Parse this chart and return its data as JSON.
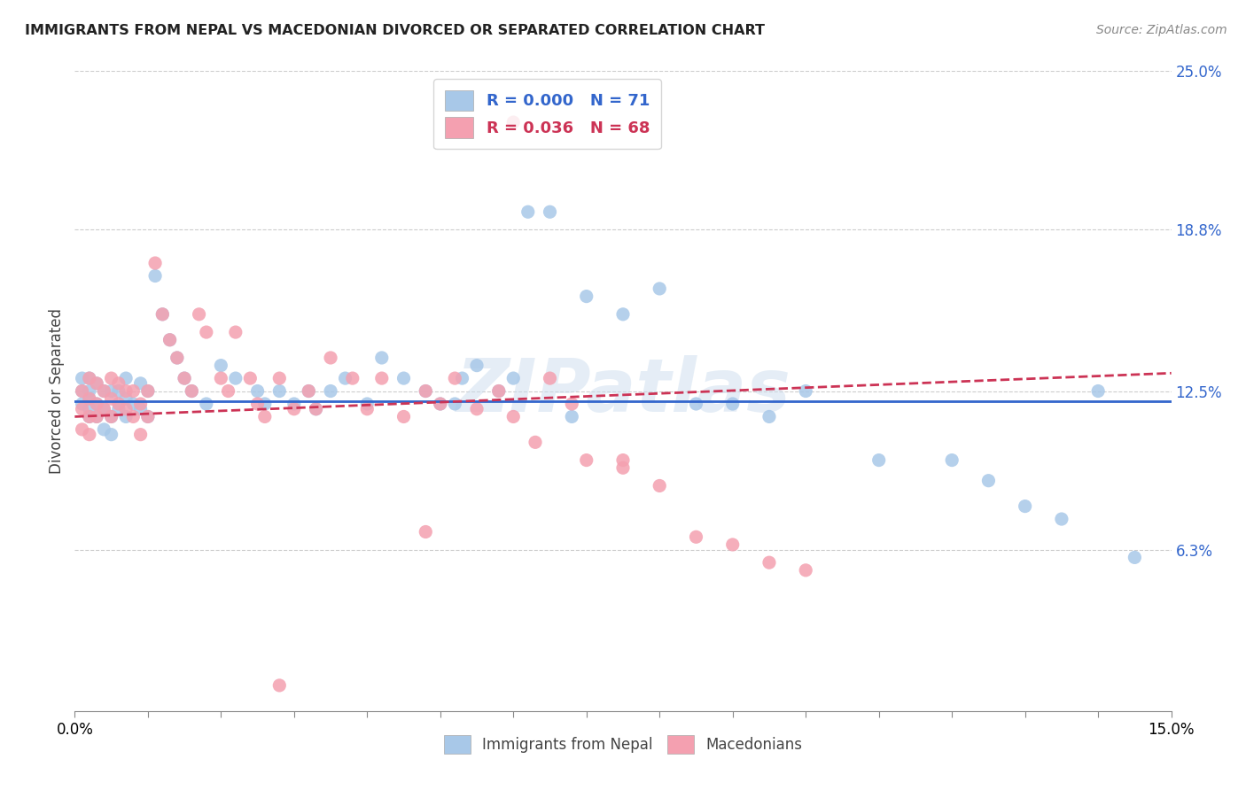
{
  "title": "IMMIGRANTS FROM NEPAL VS MACEDONIAN DIVORCED OR SEPARATED CORRELATION CHART",
  "source_text": "Source: ZipAtlas.com",
  "ylabel": "Divorced or Separated",
  "xlim": [
    0.0,
    0.15
  ],
  "ylim": [
    0.0,
    0.25
  ],
  "ytick_values": [
    0.0,
    0.063,
    0.125,
    0.188,
    0.25
  ],
  "ytick_labels": [
    "",
    "6.3%",
    "12.5%",
    "18.8%",
    "25.0%"
  ],
  "watermark_text": "ZIPatlas",
  "nepal_color": "#a8c8e8",
  "macedonian_color": "#f4a0b0",
  "nepal_trend_color": "#3366cc",
  "macedonian_trend_color": "#cc3355",
  "grid_color": "#cccccc",
  "nepal_R": 0.0,
  "nepal_N": 71,
  "macedonian_R": 0.036,
  "macedonian_N": 68,
  "nepal_x": [
    0.001,
    0.001,
    0.001,
    0.002,
    0.002,
    0.002,
    0.002,
    0.002,
    0.003,
    0.003,
    0.003,
    0.004,
    0.004,
    0.004,
    0.005,
    0.005,
    0.005,
    0.006,
    0.006,
    0.007,
    0.007,
    0.007,
    0.008,
    0.009,
    0.009,
    0.01,
    0.01,
    0.011,
    0.012,
    0.013,
    0.014,
    0.015,
    0.016,
    0.018,
    0.02,
    0.022,
    0.025,
    0.026,
    0.028,
    0.03,
    0.032,
    0.033,
    0.035,
    0.037,
    0.04,
    0.042,
    0.045,
    0.048,
    0.05,
    0.052,
    0.053,
    0.055,
    0.058,
    0.06,
    0.062,
    0.065,
    0.068,
    0.07,
    0.075,
    0.08,
    0.085,
    0.09,
    0.095,
    0.1,
    0.11,
    0.12,
    0.125,
    0.13,
    0.135,
    0.14,
    0.145
  ],
  "nepal_y": [
    0.125,
    0.13,
    0.12,
    0.125,
    0.118,
    0.13,
    0.122,
    0.115,
    0.128,
    0.12,
    0.115,
    0.125,
    0.118,
    0.11,
    0.125,
    0.115,
    0.108,
    0.125,
    0.118,
    0.13,
    0.122,
    0.115,
    0.12,
    0.128,
    0.118,
    0.125,
    0.115,
    0.17,
    0.155,
    0.145,
    0.138,
    0.13,
    0.125,
    0.12,
    0.135,
    0.13,
    0.125,
    0.12,
    0.125,
    0.12,
    0.125,
    0.118,
    0.125,
    0.13,
    0.12,
    0.138,
    0.13,
    0.125,
    0.12,
    0.12,
    0.13,
    0.135,
    0.125,
    0.13,
    0.195,
    0.195,
    0.115,
    0.162,
    0.155,
    0.165,
    0.12,
    0.12,
    0.115,
    0.125,
    0.098,
    0.098,
    0.09,
    0.08,
    0.075,
    0.125,
    0.06
  ],
  "macedonian_x": [
    0.001,
    0.001,
    0.001,
    0.002,
    0.002,
    0.002,
    0.002,
    0.003,
    0.003,
    0.003,
    0.004,
    0.004,
    0.005,
    0.005,
    0.005,
    0.006,
    0.006,
    0.007,
    0.007,
    0.008,
    0.008,
    0.009,
    0.009,
    0.01,
    0.01,
    0.011,
    0.012,
    0.013,
    0.014,
    0.015,
    0.016,
    0.017,
    0.018,
    0.02,
    0.021,
    0.022,
    0.024,
    0.025,
    0.026,
    0.028,
    0.03,
    0.032,
    0.033,
    0.035,
    0.038,
    0.04,
    0.042,
    0.045,
    0.048,
    0.05,
    0.052,
    0.055,
    0.058,
    0.06,
    0.063,
    0.065,
    0.068,
    0.07,
    0.075,
    0.08,
    0.085,
    0.09,
    0.095,
    0.1,
    0.06,
    0.075,
    0.048,
    0.028
  ],
  "macedonian_y": [
    0.125,
    0.118,
    0.11,
    0.13,
    0.122,
    0.115,
    0.108,
    0.128,
    0.12,
    0.115,
    0.125,
    0.118,
    0.13,
    0.122,
    0.115,
    0.128,
    0.12,
    0.125,
    0.118,
    0.125,
    0.115,
    0.12,
    0.108,
    0.125,
    0.115,
    0.175,
    0.155,
    0.145,
    0.138,
    0.13,
    0.125,
    0.155,
    0.148,
    0.13,
    0.125,
    0.148,
    0.13,
    0.12,
    0.115,
    0.13,
    0.118,
    0.125,
    0.118,
    0.138,
    0.13,
    0.118,
    0.13,
    0.115,
    0.125,
    0.12,
    0.13,
    0.118,
    0.125,
    0.115,
    0.105,
    0.13,
    0.12,
    0.098,
    0.095,
    0.088,
    0.068,
    0.065,
    0.058,
    0.055,
    0.23,
    0.098,
    0.07,
    0.01
  ],
  "nepal_trend_x": [
    0.0,
    0.15
  ],
  "nepal_trend_y": [
    0.121,
    0.121
  ],
  "macedonian_trend_x": [
    0.0,
    0.15
  ],
  "macedonian_trend_y": [
    0.115,
    0.132
  ]
}
